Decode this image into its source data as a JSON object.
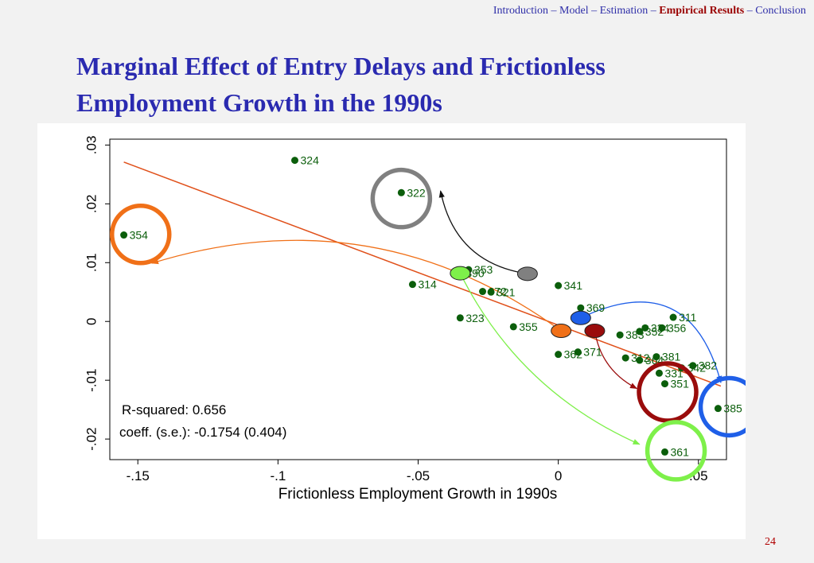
{
  "nav": {
    "items": [
      "Introduction",
      "Model",
      "Estimation",
      "Empirical Results",
      "Conclusion"
    ],
    "active": "Empirical Results",
    "separator": "–"
  },
  "slide": {
    "title_line1": "Marginal Effect of Entry Delays and Frictionless",
    "title_line2": "Employment Growth in the 1990s",
    "page_number": "24"
  },
  "colors": {
    "nav": "#2e2ea8",
    "nav_active": "#9a0000",
    "title": "#2a2ab0",
    "points": "#0b5e0b",
    "fit_line": "#e0501a"
  },
  "chart_data": {
    "type": "scatter",
    "title": "",
    "xlabel": "Frictionless Employment Growth in 1990s",
    "ylabel": "",
    "xlim": [
      -0.16,
      0.06
    ],
    "ylim": [
      -0.0235,
      0.031
    ],
    "xticks": [
      -0.15,
      -0.1,
      -0.05,
      0,
      0.05
    ],
    "xtick_labels": [
      "-.15",
      "-.1",
      "-.05",
      "0",
      ".05"
    ],
    "yticks": [
      -0.02,
      -0.01,
      0,
      0.01,
      0.02,
      0.03
    ],
    "ytick_labels": [
      "-.02",
      "-.01",
      "0",
      ".01",
      ".02",
      ".03"
    ],
    "grid": false,
    "points": [
      {
        "label": "324",
        "x": -0.094,
        "y": 0.0274
      },
      {
        "label": "322",
        "x": -0.056,
        "y": 0.0219
      },
      {
        "label": "354",
        "x": -0.155,
        "y": 0.0147
      },
      {
        "label": "314",
        "x": -0.052,
        "y": 0.0063
      },
      {
        "label": "353",
        "x": -0.032,
        "y": 0.0088
      },
      {
        "label": "390",
        "x": -0.035,
        "y": 0.0082
      },
      {
        "label": "372",
        "x": -0.027,
        "y": 0.0051
      },
      {
        "label": "321",
        "x": -0.024,
        "y": 0.005
      },
      {
        "label": "341",
        "x": 0.0,
        "y": 0.0061
      },
      {
        "label": "369",
        "x": 0.008,
        "y": 0.0023
      },
      {
        "label": "323",
        "x": -0.035,
        "y": 0.0006
      },
      {
        "label": "355",
        "x": -0.016,
        "y": -0.0009
      },
      {
        "label": "311",
        "x": 0.041,
        "y": 0.0007
      },
      {
        "label": "356",
        "x": 0.037,
        "y": -0.0011
      },
      {
        "label": "334",
        "x": 0.031,
        "y": -0.0011
      },
      {
        "label": "352",
        "x": 0.029,
        "y": -0.0017
      },
      {
        "label": "383",
        "x": 0.022,
        "y": -0.0023
      },
      {
        "label": "371",
        "x": 0.007,
        "y": -0.0052
      },
      {
        "label": "362",
        "x": 0.0,
        "y": -0.0056
      },
      {
        "label": "381",
        "x": 0.035,
        "y": -0.006
      },
      {
        "label": "312",
        "x": 0.024,
        "y": -0.0062
      },
      {
        "label": "364",
        "x": 0.029,
        "y": -0.0066
      },
      {
        "label": "382",
        "x": 0.048,
        "y": -0.0075
      },
      {
        "label": "342",
        "x": 0.044,
        "y": -0.0079
      },
      {
        "label": "331",
        "x": 0.036,
        "y": -0.0088
      },
      {
        "label": "351",
        "x": 0.038,
        "y": -0.0106
      },
      {
        "label": "385",
        "x": 0.057,
        "y": -0.0148
      },
      {
        "label": "361",
        "x": 0.038,
        "y": -0.0222
      }
    ],
    "fit_line": {
      "x": [
        -0.155,
        0.058
      ],
      "y": [
        0.0271,
        -0.011
      ]
    },
    "markers": [
      {
        "x": -0.035,
        "y": 0.0082,
        "color": "#7ef04a"
      },
      {
        "x": -0.011,
        "y": 0.0081,
        "color": "#808080"
      },
      {
        "x": 0.001,
        "y": -0.0016,
        "color": "#f07018"
      },
      {
        "x": 0.008,
        "y": 0.0006,
        "color": "#1f5fe8"
      },
      {
        "x": 0.013,
        "y": -0.0016,
        "color": "#9a0c0c"
      }
    ],
    "rings": [
      {
        "label": "322",
        "x": -0.056,
        "y": 0.0209,
        "color": "#808080"
      },
      {
        "label": "354",
        "x": -0.149,
        "y": 0.0148,
        "color": "#f07018"
      },
      {
        "label": "385",
        "x": 0.061,
        "y": -0.0145,
        "color": "#1f5fe8"
      },
      {
        "label": "351",
        "x": 0.039,
        "y": -0.012,
        "color": "#9a0c0c"
      },
      {
        "label": "361",
        "x": 0.042,
        "y": -0.022,
        "color": "#7ef04a"
      }
    ],
    "arrows": [
      {
        "from_x": -0.011,
        "from_y": 0.0081,
        "to_x": -0.042,
        "to_y": 0.0222,
        "color": "#111111"
      },
      {
        "from_x": 0.001,
        "from_y": -0.0016,
        "to_x": -0.145,
        "to_y": 0.0099,
        "color": "#f07018"
      },
      {
        "from_x": 0.008,
        "from_y": 0.0006,
        "to_x": 0.058,
        "to_y": -0.0104,
        "color": "#1f5fe8"
      },
      {
        "from_x": 0.013,
        "from_y": -0.0016,
        "to_x": 0.028,
        "to_y": -0.0114,
        "color": "#9a0c0c"
      },
      {
        "from_x": -0.035,
        "from_y": 0.0082,
        "to_x": 0.029,
        "to_y": -0.0209,
        "color": "#7ef04a"
      }
    ],
    "annotations": [
      "R-squared: 0.656",
      "coeff. (s.e.): -0.1754 (0.404)"
    ]
  }
}
